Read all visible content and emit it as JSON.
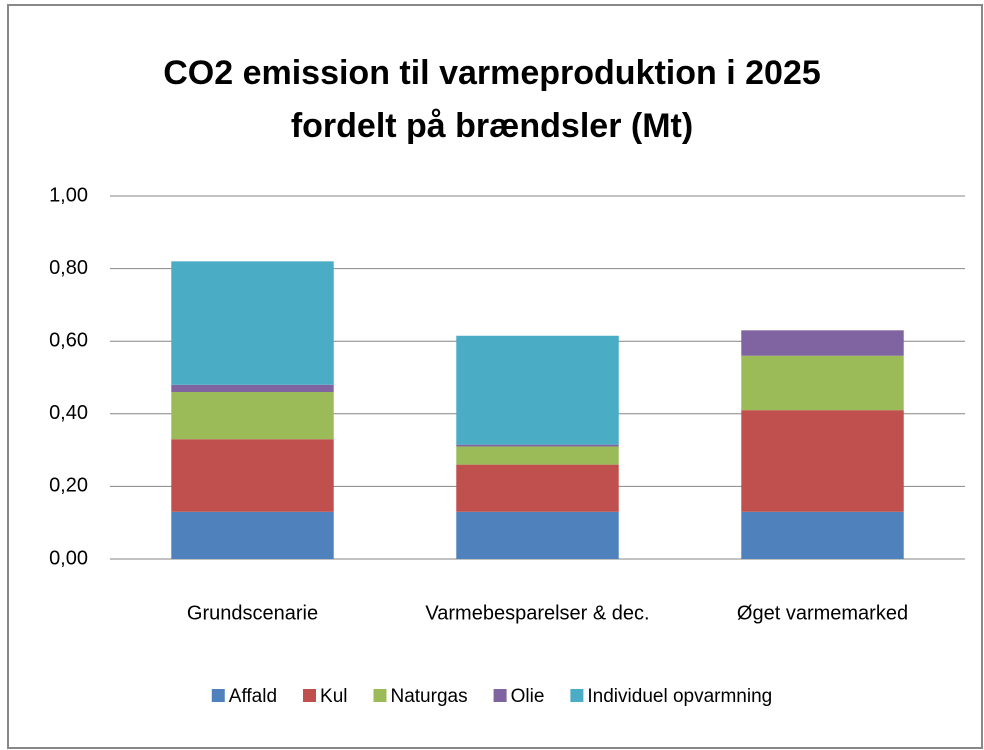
{
  "chart_data": {
    "type": "stacked_bar",
    "title": "CO2 emission til varmeproduktion i 2025 fordelt på brændsler (Mt)",
    "categories": [
      "Grundscenarie",
      "Varmebesparelser & dec.",
      "Øget varmemarked"
    ],
    "series": [
      {
        "name": "Affald",
        "color": "#4f81bd",
        "values": [
          0.13,
          0.13,
          0.13
        ]
      },
      {
        "name": "Kul",
        "color": "#c0504d",
        "values": [
          0.2,
          0.13,
          0.28
        ]
      },
      {
        "name": "Naturgas",
        "color": "#9bbb59",
        "values": [
          0.13,
          0.05,
          0.15
        ]
      },
      {
        "name": "Olie",
        "color": "#8064a2",
        "values": [
          0.02,
          0.005,
          0.07
        ]
      },
      {
        "name": "Individuel opvarmning",
        "color": "#4bacc6",
        "values": [
          0.34,
          0.3,
          0
        ]
      }
    ],
    "ylim": [
      0,
      1
    ],
    "yticks": [
      {
        "value": 0,
        "label": "0,00"
      },
      {
        "value": 0.2,
        "label": "0,20"
      },
      {
        "value": 0.4,
        "label": "0,40"
      },
      {
        "value": 0.6,
        "label": "0,60"
      },
      {
        "value": 0.8,
        "label": "0,80"
      },
      {
        "value": 1,
        "label": "1,00"
      }
    ],
    "grid": true,
    "legend": "bottom"
  }
}
